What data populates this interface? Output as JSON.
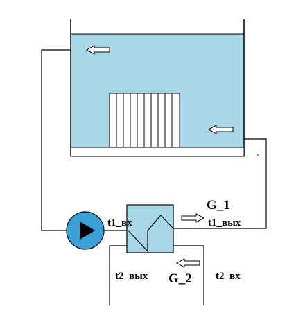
{
  "colors": {
    "water": "#a8d6e6",
    "line": "#000000",
    "white": "#ffffff",
    "pump": "#3aa0d6",
    "exchanger": "#a8d6e6"
  },
  "labels": {
    "t1_in": "t1_вх",
    "t1_out": "t1_вых",
    "g1": "G_1",
    "t2_out": "t2_вых",
    "g2": "G_2",
    "t2_in": "t2_вх"
  }
}
